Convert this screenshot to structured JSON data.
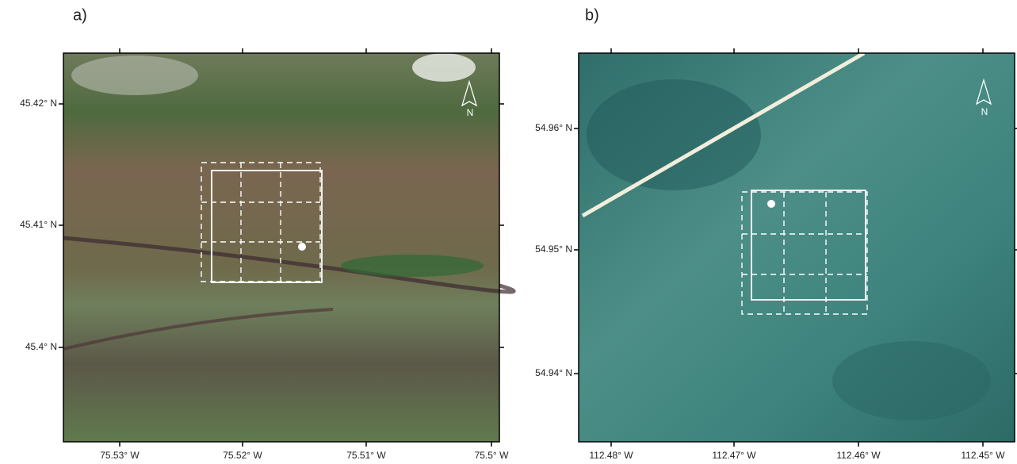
{
  "panels": [
    {
      "label": "a)",
      "north": "N",
      "x_ticks": [
        "75.53° W",
        "75.52° W",
        "75.51° W",
        "75.5° W"
      ],
      "y_ticks": [
        "45.42° N",
        "45.41° N",
        "45.4° N"
      ]
    },
    {
      "label": "b)",
      "north": "N",
      "x_ticks": [
        "112.48° W",
        "112.47° W",
        "112.46° W",
        "112.45° W"
      ],
      "y_ticks": [
        "54.96° N",
        "54.95° N",
        "54.94° N"
      ]
    }
  ]
}
